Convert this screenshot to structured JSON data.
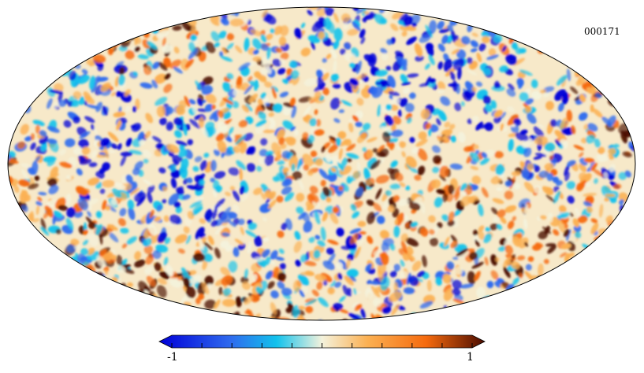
{
  "map": {
    "id_label": "000171",
    "projection": "mollweide",
    "colormap": [
      "#0000d8",
      "#2f6bee",
      "#12c2ec",
      "#f4f2dc",
      "#fbb052",
      "#f56a0e",
      "#4b0c00"
    ]
  },
  "colorbar": {
    "min_label": "-1",
    "max_label": "1",
    "tick_count": 11
  }
}
